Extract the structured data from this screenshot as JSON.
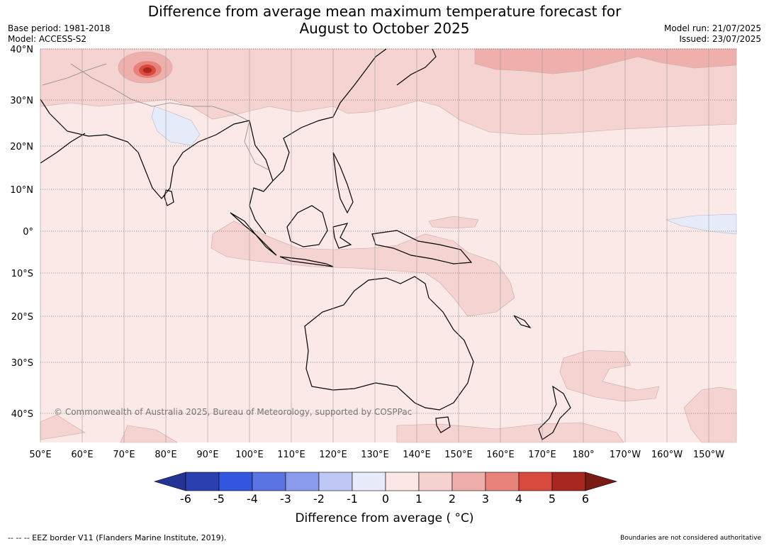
{
  "title_line1": "Difference from average mean maximum temperature forecast for",
  "title_line2": "August to October 2025",
  "meta_left": {
    "base_period": "Base period: 1981-2018",
    "model": "Model: ACCESS-S2"
  },
  "meta_right": {
    "model_run": "Model run: 21/07/2025",
    "issued": "Issued: 23/07/2025"
  },
  "copyright": "© Commonwealth of Australia 2025, Bureau of Meteorology, supported by COSPPac",
  "lat_labels": [
    "40°N",
    "30°N",
    "20°N",
    "10°N",
    "0°",
    "10°S",
    "20°S",
    "30°S",
    "40°S"
  ],
  "lon_labels": [
    "50°E",
    "60°E",
    "70°E",
    "80°E",
    "90°E",
    "100°E",
    "110°E",
    "120°E",
    "130°E",
    "140°E",
    "150°E",
    "160°E",
    "170°E",
    "180°",
    "170°W",
    "160°W",
    "150°W"
  ],
  "colorbar": {
    "title": "Difference from average ( °C)",
    "ticks": [
      "-6",
      "-5",
      "-4",
      "-3",
      "-2",
      "-1",
      "0",
      "1",
      "2",
      "3",
      "4",
      "5",
      "6"
    ],
    "colors": [
      "#253494",
      "#2b3fb0",
      "#3355e0",
      "#5b74e4",
      "#8a9bec",
      "#bfc8f4",
      "#e8ecfa",
      "#fbe8e6",
      "#f4d2cf",
      "#eeaeab",
      "#e8837b",
      "#d94a3e",
      "#a8271f",
      "#7a1a14"
    ]
  },
  "footer_left": "--  --  -- EEZ border V11 (Flanders Marine Institute, 2019).",
  "footer_right": "Boundaries are not considered authoritative"
}
